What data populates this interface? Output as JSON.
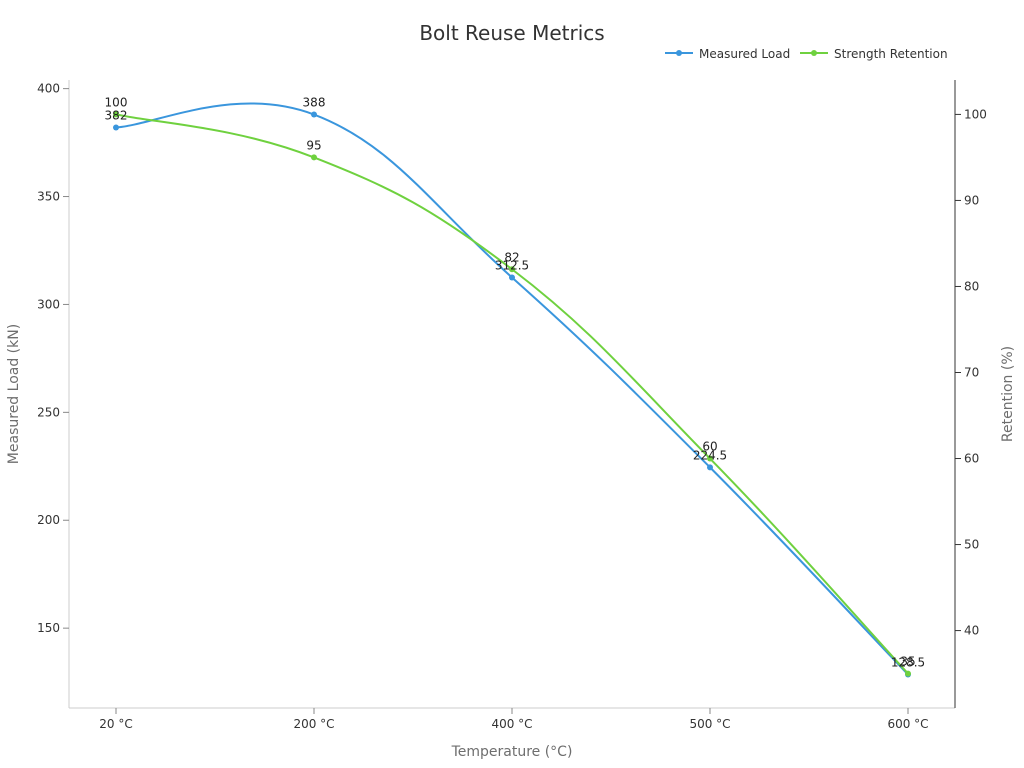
{
  "chart_data": {
    "type": "line",
    "title": "Bolt Reuse Metrics",
    "xlabel": "Temperature (°C)",
    "ylabel_left": "Measured Load (kN)",
    "ylabel_right": "Retention (%)",
    "categories": [
      "20 °C",
      "200 °C",
      "400 °C",
      "500 °C",
      "600 °C"
    ],
    "ylim_left": [
      113,
      404
    ],
    "ylim_right": [
      31,
      104
    ],
    "yticks_left": [
      "150",
      "200",
      "250",
      "300",
      "350",
      "400"
    ],
    "yticks_right": [
      "40",
      "50",
      "60",
      "70",
      "80",
      "90",
      "100"
    ],
    "legend_position": "top-right",
    "grid": false,
    "series": [
      {
        "name": "Measured Load",
        "axis": "left",
        "color": "#3a96dd",
        "values": [
          382,
          388,
          312.5,
          224.5,
          128.5
        ],
        "labels": [
          "382",
          "388",
          "312.5",
          "224.5",
          "128.5"
        ]
      },
      {
        "name": "Strength Retention",
        "axis": "right",
        "color": "#6fd13f",
        "values": [
          100,
          95,
          82,
          60,
          35
        ],
        "labels": [
          "100",
          "95",
          "82",
          "60",
          "35"
        ]
      }
    ]
  }
}
